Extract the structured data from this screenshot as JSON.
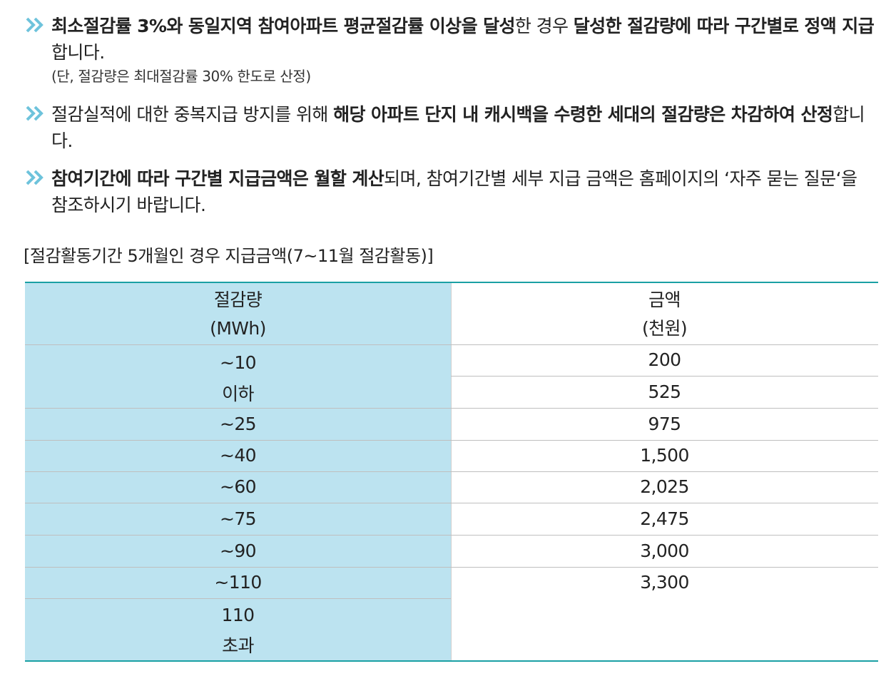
{
  "bullets": [
    {
      "icon": "double-chevron-right-icon",
      "segments": [
        {
          "text": "최소절감률 3%와 동일지역 참여아파트 평균절감률 이상을 달성",
          "bold": true
        },
        {
          "text": "한 경우 ",
          "bold": false
        },
        {
          "text": "달성한 절감량에 따라 구간별로 정액 지급",
          "bold": true
        },
        {
          "text": "합니다.",
          "bold": false
        }
      ],
      "note": "(단, 절감량은 최대절감률 30% 한도로 산정)"
    },
    {
      "icon": "double-chevron-right-icon",
      "segments": [
        {
          "text": "절감실적에 대한 중복지급 방지를 위해 ",
          "bold": false
        },
        {
          "text": "해당 아파트 단지 내 캐시백을 수령한 세대의 절감량은 차감하여 산정",
          "bold": true
        },
        {
          "text": "합니다.",
          "bold": false
        }
      ],
      "note": ""
    },
    {
      "icon": "double-chevron-right-icon",
      "segments": [
        {
          "text": "참여기간에 따라 구간별 지급금액은 월할 계산",
          "bold": true
        },
        {
          "text": "되며, 참여기간별 세부 지급 금액은 홈페이지의 ‘자주 묻는 질문‘을 참조하시기 바랍니다.",
          "bold": false
        }
      ],
      "note": ""
    }
  ],
  "caption": "[절감활동기간 5개월인 경우 지급금액(7~11월 절감활동)]",
  "table": {
    "header_left": [
      "절감량",
      "(MWh)"
    ],
    "header_right": [
      "금액",
      "(천원)"
    ],
    "left_cells": [
      [
        "~10",
        "이하"
      ],
      [
        "~25"
      ],
      [
        "~40"
      ],
      [
        "~60"
      ],
      [
        "~75"
      ],
      [
        "~90"
      ],
      [
        "~110"
      ],
      [
        "110",
        "초과"
      ]
    ],
    "right_cells": [
      "200",
      "525",
      "975",
      "1,500",
      "2,025",
      "2,475",
      "3,000",
      "3,300"
    ]
  },
  "colors": {
    "left_column_bg": "#bce3f0",
    "border_accent": "#1aa0a4",
    "bullet_icon": "#6ec3dc"
  }
}
